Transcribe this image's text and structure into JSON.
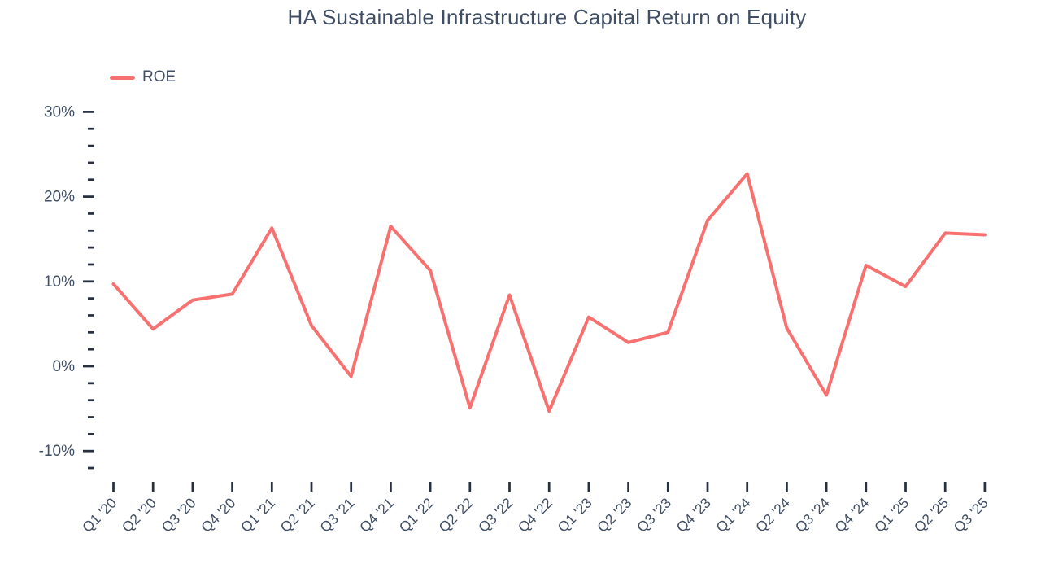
{
  "chart": {
    "title": "HA Sustainable Infrastructure Capital Return on Equity",
    "legend_label": "ROE"
  },
  "chart_data": {
    "type": "line",
    "title": "HA Sustainable Infrastructure Capital Return on Equity",
    "categories": [
      "Q1 '20",
      "Q2 '20",
      "Q3 '20",
      "Q4 '20",
      "Q1 '21",
      "Q2 '21",
      "Q3 '21",
      "Q4 '21",
      "Q1 '22",
      "Q2 '22",
      "Q3 '22",
      "Q4 '22",
      "Q1 '23",
      "Q2 '23",
      "Q3 '23",
      "Q4 '23",
      "Q1 '24",
      "Q2 '24",
      "Q3 '24",
      "Q4 '24",
      "Q1 '25",
      "Q2 '25",
      "Q3 '25"
    ],
    "series": [
      {
        "name": "ROE",
        "color": "#f87171",
        "values": [
          9.7,
          4.4,
          7.8,
          8.5,
          16.3,
          4.8,
          -1.2,
          16.5,
          11.3,
          -4.9,
          8.4,
          -5.3,
          5.8,
          2.8,
          4.0,
          17.2,
          22.7,
          4.5,
          -3.4,
          11.9,
          9.4,
          15.7,
          15.5
        ]
      }
    ],
    "xlabel": "",
    "ylabel": "",
    "ylim": [
      -12,
      30
    ],
    "y_major_ticks": [
      30,
      20,
      10,
      0,
      -10
    ],
    "y_minor_step": 2,
    "y_tick_format": "{v}%",
    "grid": false,
    "legend_position": "top-left",
    "background": "#ffffff",
    "text_color": "#404e64",
    "tick_color": "#27303f"
  }
}
